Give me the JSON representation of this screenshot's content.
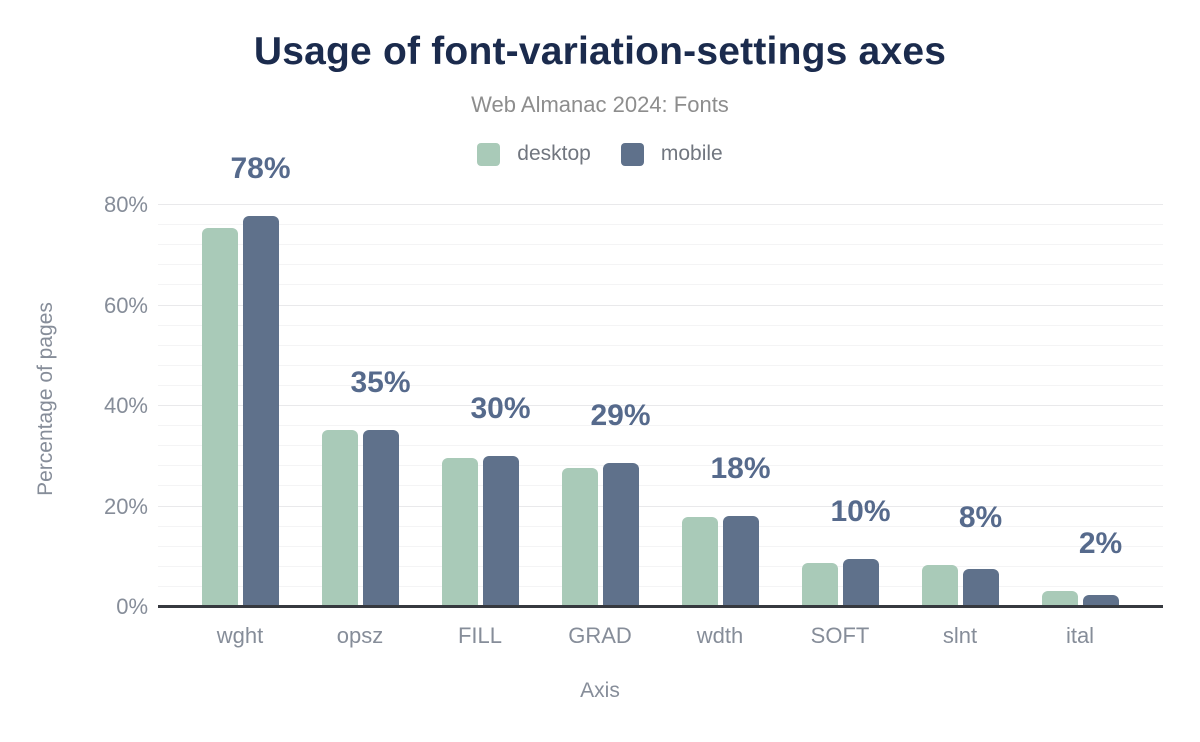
{
  "chart_data": {
    "type": "bar",
    "title": "Usage of font-variation-settings axes",
    "subtitle": "Web Almanac 2024: Fonts",
    "xlabel": "Axis",
    "ylabel": "Percentage of pages",
    "categories": [
      "wght",
      "opsz",
      "FILL",
      "GRAD",
      "wdth",
      "SOFT",
      "slnt",
      "ital"
    ],
    "series": [
      {
        "name": "desktop",
        "color": "#a9cab8",
        "values": [
          75.5,
          35.2,
          29.7,
          27.7,
          18.0,
          8.8,
          8.3,
          3.2
        ]
      },
      {
        "name": "mobile",
        "color": "#5f718b",
        "values": [
          77.9,
          35.3,
          30.1,
          28.6,
          18.1,
          9.6,
          7.5,
          2.4
        ]
      }
    ],
    "bar_labels": [
      "78%",
      "35%",
      "30%",
      "29%",
      "18%",
      "10%",
      "8%",
      "2%"
    ],
    "bar_labels_annotate_series": "mobile",
    "yticks": [
      {
        "label": "0%",
        "value": 0
      },
      {
        "label": "20%",
        "value": 20
      },
      {
        "label": "40%",
        "value": 40
      },
      {
        "label": "60%",
        "value": 60
      },
      {
        "label": "80%",
        "value": 80
      }
    ],
    "ylim": [
      0,
      83
    ],
    "grid": {
      "orientation": "horizontal",
      "minor_step": 4,
      "major_step": 20,
      "minor_color": "#f4f4f5",
      "major_color": "#e9e9eb"
    },
    "legend_position": "top",
    "colors": {
      "background": "#ffffff",
      "title_text": "#1b2b4d",
      "subtitle_text": "#8d8d8d",
      "legend_text": "#71767f",
      "tick_text": "#868d99",
      "axis_line": "#36393f",
      "bar_label_text": "#566a8c"
    }
  }
}
